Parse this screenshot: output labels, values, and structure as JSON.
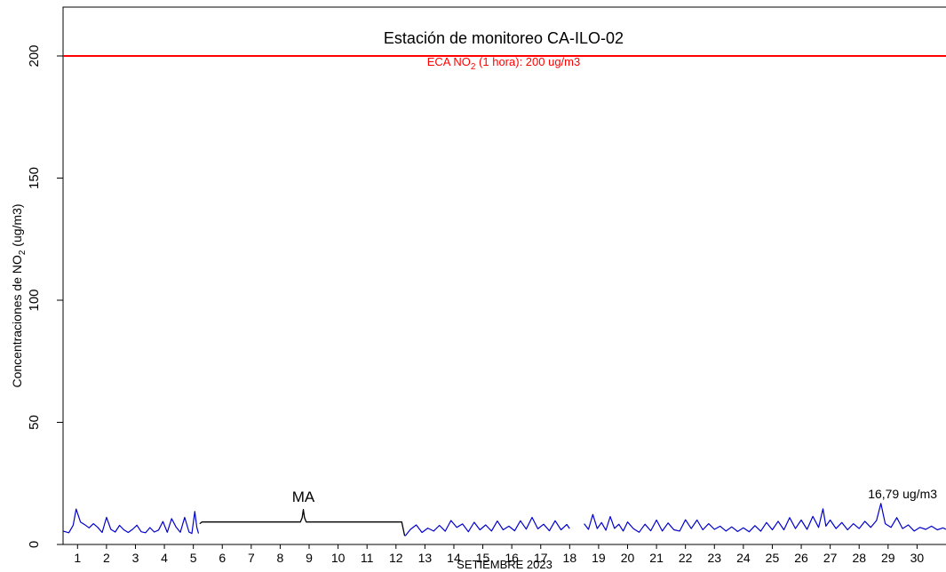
{
  "chart_data": {
    "type": "line",
    "title": "Estación de monitoreo  CA-ILO-02",
    "xlabel": "SETIEMBRE 2023",
    "ylabel_parts": [
      "Concentraciones de NO",
      "2",
      " (ug/m3)"
    ],
    "x_unit": "day of September 2023 (hourly data)",
    "xlim": [
      0.5,
      31
    ],
    "ylim": [
      0,
      220
    ],
    "x_ticks": [
      "1",
      "2",
      "3",
      "4",
      "5",
      "6",
      "7",
      "8",
      "9",
      "10",
      "11",
      "12",
      "13",
      "14",
      "15",
      "16",
      "17",
      "18",
      "19",
      "20",
      "21",
      "22",
      "23",
      "24",
      "25",
      "26",
      "27",
      "28",
      "29",
      "30"
    ],
    "y_ticks": [
      0,
      50,
      100,
      150,
      200
    ],
    "threshold": {
      "value": 200,
      "label_parts": [
        "ECA NO",
        "2",
        " (1 hora): 200 ug/m3"
      ],
      "color": "#ff0000"
    },
    "series": [
      {
        "color": "#0000cc",
        "segments": [
          [
            [
              0.5,
              5.5
            ],
            [
              0.7,
              4.8
            ],
            [
              0.85,
              7.9
            ],
            [
              0.95,
              14.5
            ],
            [
              1.1,
              9.2
            ],
            [
              1.25,
              8.1
            ],
            [
              1.4,
              6.8
            ],
            [
              1.55,
              8.5
            ],
            [
              1.7,
              7.0
            ],
            [
              1.85,
              4.9
            ],
            [
              2.0,
              11.1
            ],
            [
              2.15,
              6.2
            ],
            [
              2.3,
              5.1
            ],
            [
              2.45,
              7.8
            ],
            [
              2.6,
              6.0
            ],
            [
              2.75,
              4.9
            ],
            [
              2.9,
              6.2
            ],
            [
              3.05,
              7.9
            ],
            [
              3.2,
              5.2
            ],
            [
              3.35,
              4.8
            ],
            [
              3.5,
              6.9
            ],
            [
              3.65,
              5.1
            ],
            [
              3.8,
              5.9
            ],
            [
              3.95,
              9.4
            ],
            [
              4.1,
              5.0
            ],
            [
              4.25,
              10.6
            ],
            [
              4.4,
              7.2
            ],
            [
              4.55,
              5.0
            ],
            [
              4.7,
              11.1
            ],
            [
              4.85,
              5.1
            ],
            [
              4.95,
              4.5
            ],
            [
              5.05,
              13.5
            ],
            [
              5.12,
              7.0
            ],
            [
              5.18,
              4.5
            ]
          ],
          [
            [
              5.22,
              8.5
            ],
            [
              5.3,
              9.2
            ],
            [
              8.7,
              9.2
            ],
            [
              8.76,
              11.0
            ],
            [
              8.8,
              14.3
            ],
            [
              8.84,
              11.0
            ],
            [
              8.9,
              9.2
            ],
            [
              12.2,
              9.2
            ],
            [
              12.3,
              3.5
            ]
          ],
          [
            [
              12.32,
              3.5
            ],
            [
              12.5,
              6.2
            ],
            [
              12.7,
              8.0
            ],
            [
              12.9,
              4.9
            ],
            [
              13.1,
              6.7
            ],
            [
              13.3,
              5.5
            ],
            [
              13.5,
              7.8
            ],
            [
              13.7,
              5.4
            ],
            [
              13.9,
              9.8
            ],
            [
              14.1,
              7.0
            ],
            [
              14.3,
              8.4
            ],
            [
              14.5,
              5.2
            ],
            [
              14.7,
              9.1
            ],
            [
              14.9,
              6.0
            ],
            [
              15.1,
              8.0
            ],
            [
              15.3,
              5.5
            ],
            [
              15.5,
              9.6
            ],
            [
              15.7,
              6.0
            ],
            [
              15.9,
              7.5
            ],
            [
              16.1,
              5.6
            ],
            [
              16.3,
              9.7
            ],
            [
              16.5,
              6.3
            ],
            [
              16.7,
              11.1
            ],
            [
              16.9,
              6.4
            ],
            [
              17.1,
              8.3
            ],
            [
              17.3,
              5.6
            ],
            [
              17.5,
              9.7
            ],
            [
              17.7,
              6.0
            ],
            [
              17.9,
              8.2
            ],
            [
              18.0,
              6.5
            ]
          ],
          [
            [
              18.5,
              8.5
            ],
            [
              18.65,
              6.2
            ],
            [
              18.8,
              12.3
            ],
            [
              18.95,
              6.5
            ],
            [
              19.1,
              9.0
            ],
            [
              19.25,
              5.8
            ],
            [
              19.4,
              11.4
            ],
            [
              19.55,
              6.6
            ],
            [
              19.7,
              8.3
            ],
            [
              19.85,
              5.5
            ],
            [
              20.0,
              9.2
            ],
            [
              20.2,
              6.5
            ],
            [
              20.4,
              5.0
            ],
            [
              20.6,
              8.3
            ],
            [
              20.8,
              5.6
            ],
            [
              21.0,
              10.0
            ],
            [
              21.2,
              5.5
            ],
            [
              21.4,
              8.8
            ],
            [
              21.6,
              6.0
            ],
            [
              21.8,
              5.5
            ],
            [
              22.0,
              10.1
            ],
            [
              22.2,
              6.5
            ],
            [
              22.4,
              10.0
            ],
            [
              22.6,
              6.0
            ],
            [
              22.8,
              8.5
            ],
            [
              23.0,
              6.2
            ],
            [
              23.2,
              7.5
            ],
            [
              23.4,
              5.5
            ],
            [
              23.6,
              7.2
            ],
            [
              23.8,
              5.3
            ],
            [
              24.0,
              6.8
            ],
            [
              24.2,
              5.2
            ],
            [
              24.4,
              7.7
            ],
            [
              24.6,
              5.4
            ],
            [
              24.8,
              9.0
            ],
            [
              25.0,
              6.0
            ],
            [
              25.2,
              9.5
            ],
            [
              25.4,
              6.0
            ],
            [
              25.6,
              11.0
            ],
            [
              25.8,
              6.5
            ],
            [
              26.0,
              10.0
            ],
            [
              26.2,
              6.2
            ],
            [
              26.4,
              11.5
            ],
            [
              26.6,
              7.0
            ],
            [
              26.75,
              14.6
            ],
            [
              26.85,
              7.5
            ],
            [
              27.0,
              10.0
            ],
            [
              27.2,
              6.5
            ],
            [
              27.4,
              9.0
            ],
            [
              27.6,
              6.0
            ],
            [
              27.8,
              8.5
            ],
            [
              28.0,
              6.5
            ],
            [
              28.2,
              9.5
            ],
            [
              28.4,
              7.0
            ],
            [
              28.6,
              9.8
            ],
            [
              28.75,
              16.79
            ],
            [
              28.9,
              8.5
            ],
            [
              29.1,
              7.0
            ],
            [
              29.3,
              11.0
            ],
            [
              29.5,
              6.5
            ],
            [
              29.7,
              8.0
            ],
            [
              29.9,
              5.5
            ],
            [
              30.1,
              7.0
            ],
            [
              30.3,
              6.2
            ],
            [
              30.5,
              7.5
            ],
            [
              30.7,
              6.0
            ],
            [
              30.9,
              6.8
            ],
            [
              31.0,
              6.2
            ]
          ]
        ]
      }
    ],
    "annotations": [
      {
        "text": "MA",
        "x": 8.8,
        "y": 17.5
      },
      {
        "text": "16,79 ug/m3",
        "x": 29.5,
        "y": 19.0
      }
    ]
  }
}
